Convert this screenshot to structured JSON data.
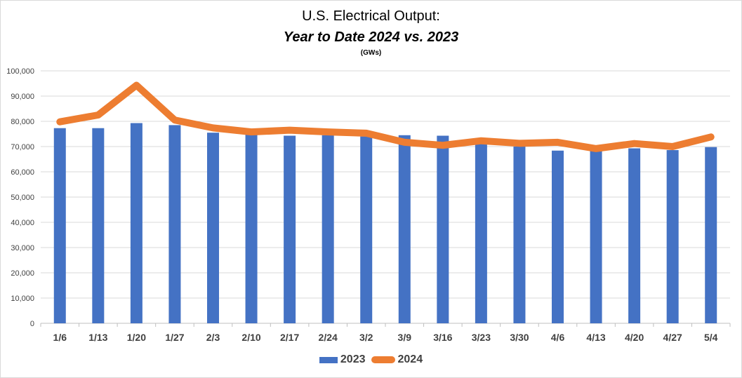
{
  "chart_data": {
    "type": "bar",
    "title": "U.S. Electrical Output:",
    "subtitle": "Year to Date 2024 vs. 2023",
    "units": "(GWs)",
    "categories": [
      "1/6",
      "1/13",
      "1/20",
      "1/27",
      "2/3",
      "2/10",
      "2/17",
      "2/24",
      "3/2",
      "3/9",
      "3/16",
      "3/23",
      "3/30",
      "4/6",
      "4/13",
      "4/20",
      "4/27",
      "5/4"
    ],
    "series": [
      {
        "name": "2023",
        "type": "bar",
        "color": "#4472c4",
        "values": [
          77300,
          77300,
          79300,
          78500,
          75500,
          75000,
          74300,
          74500,
          74000,
          74500,
          74300,
          72000,
          70000,
          68400,
          68700,
          69300,
          68600,
          69800
        ]
      },
      {
        "name": "2024",
        "type": "line",
        "color": "#ed7d31",
        "values": [
          79800,
          82500,
          94300,
          80500,
          77400,
          75800,
          76500,
          75800,
          75300,
          71700,
          70500,
          72300,
          71300,
          71700,
          69200,
          71200,
          70000,
          73800
        ]
      }
    ],
    "yticks": [
      "100,000",
      "90,000",
      "80,000",
      "70,000",
      "60,000",
      "50,000",
      "40,000",
      "30,000",
      "20,000",
      "10,000",
      "0"
    ],
    "ylim": [
      0,
      100000
    ],
    "grid": true,
    "legend": "bottom"
  }
}
